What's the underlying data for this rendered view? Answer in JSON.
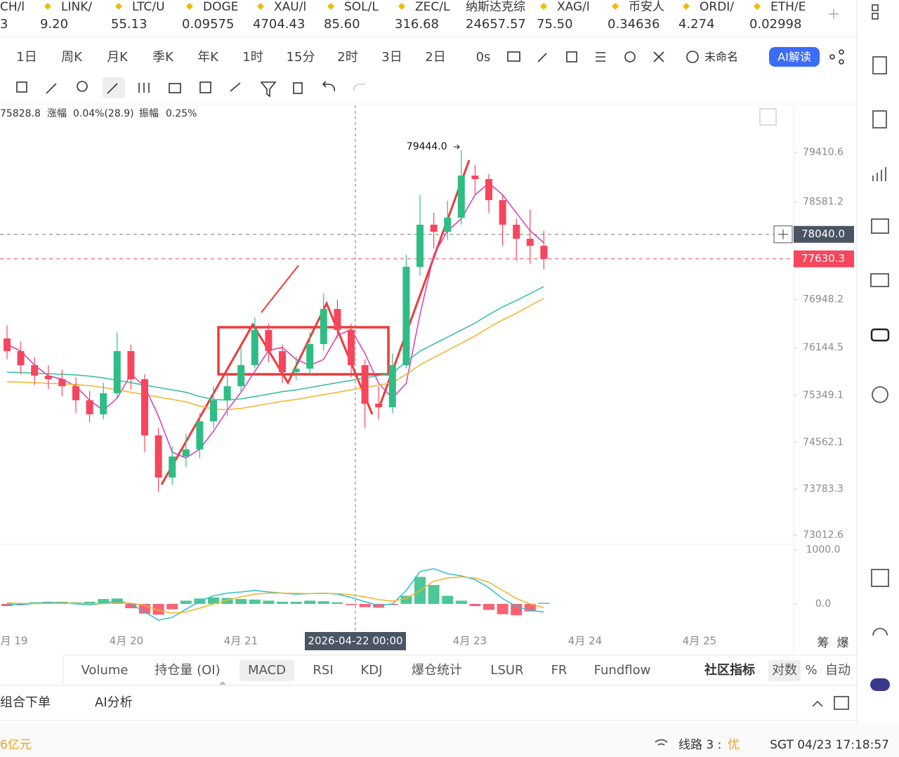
{
  "tickers": [
    {
      "name": "CH/l",
      "price": "3",
      "color": "#e8383d"
    },
    {
      "name": "LINK/",
      "price": "9.20",
      "color": "#333333"
    },
    {
      "name": "LTC/U",
      "price": "55.13",
      "color": "#333333"
    },
    {
      "name": "DOGE",
      "price": "0.09575",
      "color": "#e8383d"
    },
    {
      "name": "XAU/l",
      "price": "4704.43",
      "color": "#e8383d"
    },
    {
      "name": "SOL/L",
      "price": "85.60",
      "color": "#333333"
    },
    {
      "name": "ZEC/L",
      "price": "316.68",
      "color": "#e8383d"
    },
    {
      "name": "纳斯达克综",
      "price": "24657.57",
      "color": "#333333"
    },
    {
      "name": "XAG/l",
      "price": "75.50",
      "color": "#e8383d"
    },
    {
      "name": "币安人",
      "price": "0.34636",
      "color": "#20b26c"
    },
    {
      "name": "ORDI/",
      "price": "4.274",
      "color": "#e8383d"
    },
    {
      "name": "ETH/E",
      "price": "0.02998",
      "color": "#20b26c"
    }
  ],
  "intervals": [
    "1日",
    "周K",
    "月K",
    "季K",
    "年K",
    "1时",
    "15分",
    "2时",
    "3日",
    "2日",
    "0s"
  ],
  "layout_name": "未命名",
  "ai_button": "AI解读",
  "info": [
    "75828.8",
    "涨幅",
    "0.04%(28.9)",
    "振幅",
    "0.25%"
  ],
  "chart": {
    "type": "candlestick",
    "open": [
      76300.0,
      76088.2,
      75853.4,
      75677.3,
      75618.6,
      75501.2,
      75266.4,
      75031.6,
      75383.8,
      76088.2,
      75618.6,
      74679.4,
      73975.0,
      74327.2,
      74444.6,
      74914.2,
      75266.4,
      75501.2,
      75853.4,
      76440.4,
      76088.2,
      75736.0,
      75794.7,
      76205.6,
      76792.6,
      76440.4,
      75853.4,
      75207.7,
      75149.0,
      75853.4,
      77497.0,
      78201.4,
      78084.0,
      78318.8,
      79023.2,
      78964.5,
      78612.3,
      78201.4,
      77966.6,
      77849.2
    ],
    "high": [
      76520.0,
      76250.0,
      75990.0,
      75850.0,
      75780.0,
      75650.0,
      75420.0,
      75560.0,
      76400.0,
      76200.0,
      75700.0,
      74800.0,
      74500.0,
      74700.0,
      75050.0,
      75500.0,
      75700.0,
      76150.0,
      76650.0,
      76550.0,
      76200.0,
      76000.0,
      76400.0,
      77050.0,
      76950.0,
      76550.0,
      75950.0,
      75500.0,
      76050.0,
      77700.0,
      78700.0,
      78400.0,
      78600.0,
      79444.0,
      79200.0,
      79050.0,
      78700.0,
      78300.0,
      78450.0,
      78100.0
    ],
    "low": [
      75950.0,
      75700.0,
      75520.0,
      75450.0,
      75330.0,
      75050.0,
      74900.0,
      74950.0,
      75300.0,
      75450.0,
      74400.0,
      73740.0,
      73850.0,
      74150.0,
      74300.0,
      74800.0,
      75000.0,
      75400.0,
      75800.0,
      75900.0,
      75550.0,
      75600.0,
      75700.0,
      76100.0,
      76300.0,
      75650.0,
      74800.0,
      74950.0,
      75050.0,
      75800.0,
      77350.0,
      77800.0,
      77950.0,
      78200.0,
      78700.0,
      78400.0,
      77850.0,
      77600.0,
      77550.0,
      77450.0
    ],
    "close": [
      76088.2,
      75853.4,
      75677.3,
      75618.6,
      75501.2,
      75266.4,
      75031.6,
      75383.8,
      76088.2,
      75618.6,
      74679.4,
      73975.0,
      74327.2,
      74444.6,
      74914.2,
      75266.4,
      75501.2,
      75853.4,
      76440.4,
      76088.2,
      75736.0,
      75794.7,
      76205.6,
      76792.6,
      76440.4,
      75853.4,
      75207.7,
      75149.0,
      75853.4,
      77497.0,
      78201.4,
      78084.0,
      78318.8,
      79023.2,
      78964.5,
      78612.3,
      78201.4,
      77966.6,
      77849.2,
      77630.3
    ],
    "up_color": "#2ebd85",
    "down_color": "#f6465d",
    "ma": [
      {
        "color": "#d63bb8",
        "values": [
          76200,
          76088,
          75853,
          75677,
          75619,
          75501,
          75266,
          75100,
          75300,
          75700,
          75500,
          75000,
          74400,
          74300,
          74450,
          74750,
          75100,
          75400,
          75750,
          76100,
          76150,
          75950,
          75850,
          75950,
          76350,
          76450,
          76050,
          75550,
          75300,
          75550,
          76700,
          77700,
          78100,
          78300,
          78700,
          78900,
          78700,
          78400,
          78100,
          77900
        ]
      },
      {
        "color": "#2fbf9a",
        "values": [
          75736,
          75730,
          75720,
          75710,
          75700,
          75690,
          75670,
          75640,
          75600,
          75560,
          75520,
          75480,
          75440,
          75400,
          75330,
          75280,
          75270,
          75290,
          75330,
          75370,
          75410,
          75440,
          75480,
          75520,
          75560,
          75600,
          75640,
          75680,
          75720,
          75911,
          76088,
          76206,
          76323,
          76440,
          76558,
          76699,
          76828,
          76934,
          77051,
          77168
        ]
      },
      {
        "color": "#f0b429",
        "values": [
          75576,
          75570,
          75560,
          75550,
          75540,
          75530,
          75510,
          75480,
          75440,
          75400,
          75360,
          75320,
          75280,
          75240,
          75170,
          75120,
          75110,
          75130,
          75170,
          75210,
          75250,
          75280,
          75320,
          75360,
          75400,
          75440,
          75480,
          75520,
          75560,
          75700,
          75860,
          75980,
          76100,
          76220,
          76340,
          76480,
          76610,
          76720,
          76850,
          76970
        ]
      }
    ],
    "ylim": [
      72859.7,
      80197.2
    ],
    "yticks": [
      79410.6,
      78581.2,
      76948.2,
      76144.5,
      75349.1,
      74562.1,
      73783.3,
      73012.6
    ],
    "max_label": {
      "value": 79444.0,
      "label": "79444.0"
    },
    "crosshair": {
      "value": 78040.0,
      "label": "78040.0"
    },
    "last_price": 77630.3,
    "crosshair_date": "2026-04-22 00:00",
    "x_labels": [
      "月 19",
      "4月 20",
      "4月 21",
      "4月 23",
      "4月 24",
      "4月 25"
    ],
    "macd": {
      "hist": [
        -40,
        -20,
        30,
        40,
        40,
        30,
        40,
        90,
        100,
        -80,
        -180,
        -200,
        -100,
        60,
        100,
        120,
        110,
        90,
        80,
        60,
        40,
        40,
        60,
        50,
        30,
        -20,
        -60,
        -70,
        -20,
        150,
        500,
        350,
        150,
        60,
        -40,
        -110,
        -190,
        -210,
        -140,
        20
      ],
      "dif": [
        0,
        -20,
        10,
        30,
        20,
        0,
        -20,
        10,
        60,
        0,
        -150,
        -300,
        -250,
        -100,
        50,
        150,
        200,
        220,
        250,
        220,
        200,
        180,
        190,
        200,
        180,
        120,
        40,
        -30,
        0,
        250,
        600,
        650,
        560,
        520,
        450,
        300,
        100,
        -50,
        -120,
        -150
      ],
      "dea": [
        20,
        10,
        5,
        10,
        12,
        10,
        5,
        5,
        20,
        15,
        -30,
        -120,
        -170,
        -150,
        -80,
        0,
        70,
        130,
        180,
        200,
        200,
        195,
        190,
        195,
        190,
        170,
        130,
        80,
        50,
        100,
        250,
        420,
        480,
        500,
        480,
        400,
        250,
        100,
        0,
        -70
      ],
      "dif_color": "#2fbfd0",
      "dea_color": "#f0b429",
      "ylim": [
        -455,
        1104
      ],
      "yticks": [
        {
          "value": 1000,
          "label": "1000.0"
        },
        {
          "value": 0,
          "label": "0.0"
        }
      ]
    },
    "axis_buttons": [
      "筹",
      "爆"
    ]
  },
  "tabs": [
    "Volume",
    "持仓量 (OI)",
    "MACD",
    "RSI",
    "KDJ",
    "爆仓统计",
    "LSUR",
    "FR",
    "Fundflow",
    "社区指标",
    "对数",
    "%",
    "自动"
  ],
  "panel_tabs": [
    "组合下单",
    "AI分析"
  ],
  "status": {
    "volume": "6亿元",
    "line_label": "线路 3 :",
    "line_quality": "优",
    "time": "SGT 04/23 17:18:57"
  }
}
